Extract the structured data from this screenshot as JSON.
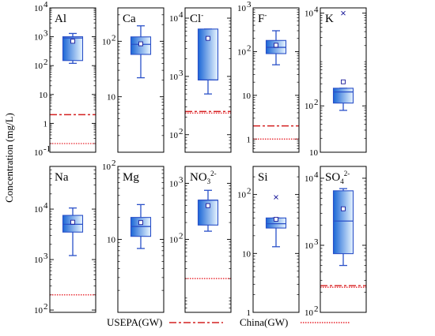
{
  "figure": {
    "ylabel": "Concentration (mg/L)",
    "legend": [
      {
        "label": "USEPA(GW)",
        "style": "dash",
        "color": "#d42020"
      },
      {
        "label": "China(GW)",
        "style": "dot",
        "color": "#e8242c"
      }
    ],
    "colors": {
      "box_dark": "#1b66d6",
      "box_light": "#e9f6ff",
      "box_stroke": "#2a50c8",
      "limit": "#d42020"
    }
  },
  "chart_data": [
    {
      "type": "box",
      "title": "Al",
      "title_sup": "",
      "title_sub": "",
      "scale": "log",
      "ylim": [
        0.1,
        10000
      ],
      "ticks": [
        {
          "v": 0.1,
          "t": "10",
          "e": "-1"
        },
        {
          "v": 1,
          "t": "1",
          "e": ""
        },
        {
          "v": 10,
          "t": "10",
          "e": ""
        },
        {
          "v": 100,
          "t": "10",
          "e": "2"
        },
        {
          "v": 1000,
          "t": "10",
          "e": "3"
        },
        {
          "v": 10000,
          "t": "10",
          "e": "4"
        }
      ],
      "stats": {
        "min": 120,
        "q1": 150,
        "median": 900,
        "q3": 1000,
        "max": 1300,
        "mean": 700,
        "outliers": []
      },
      "usepa": 2,
      "china": 0.2
    },
    {
      "type": "box",
      "title": "Ca",
      "title_sup": "",
      "title_sub": "",
      "scale": "log",
      "ylim": [
        1,
        400
      ],
      "ticks": [
        {
          "v": 10,
          "t": "10",
          "e": ""
        },
        {
          "v": 100,
          "t": "10",
          "e": "2"
        }
      ],
      "stats": {
        "min": 22,
        "q1": 58,
        "median": 88,
        "q3": 120,
        "max": 190,
        "mean": 90,
        "outliers": []
      },
      "usepa": null,
      "china": null
    },
    {
      "type": "box",
      "title": "Cl",
      "title_sup": "-",
      "title_sub": "",
      "scale": "log",
      "ylim": [
        50,
        15000
      ],
      "ticks": [
        {
          "v": 100,
          "t": "10",
          "e": "2"
        },
        {
          "v": 1000,
          "t": "10",
          "e": "3"
        },
        {
          "v": 10000,
          "t": "10",
          "e": "4"
        }
      ],
      "stats": {
        "min": 500,
        "q1": 870,
        "median": 870,
        "q3": 6500,
        "max": 6500,
        "mean": 4500,
        "outliers": []
      },
      "usepa": 250,
      "china": 250
    },
    {
      "type": "box",
      "title": "F",
      "title_sup": "-",
      "title_sub": "",
      "scale": "log",
      "ylim": [
        0.5,
        1000
      ],
      "ticks": [
        {
          "v": 1,
          "t": "1",
          "e": ""
        },
        {
          "v": 10,
          "t": "10",
          "e": ""
        },
        {
          "v": 100,
          "t": "10",
          "e": "2"
        },
        {
          "v": 1000,
          "t": "10",
          "e": "3"
        }
      ],
      "stats": {
        "min": 50,
        "q1": 90,
        "median": 125,
        "q3": 180,
        "max": 300,
        "mean": 140,
        "outliers": []
      },
      "usepa": 2,
      "china": 1
    },
    {
      "type": "box",
      "title": "K",
      "title_sup": "",
      "title_sub": "",
      "scale": "log",
      "ylim": [
        10,
        13000
      ],
      "ticks": [
        {
          "v": 10,
          "t": "10",
          "e": ""
        },
        {
          "v": 100,
          "t": "10",
          "e": "2"
        },
        {
          "v": 10000,
          "t": "10",
          "e": "4"
        }
      ],
      "stats": {
        "min": 80,
        "q1": 115,
        "median": 200,
        "q3": 240,
        "max": 240,
        "mean": 330,
        "outliers": [
          10000
        ]
      },
      "usepa": null,
      "china": null
    },
    {
      "type": "box",
      "title": "Na",
      "title_sup": "",
      "title_sub": "",
      "scale": "log",
      "ylim": [
        90,
        70000
      ],
      "ticks": [
        {
          "v": 100,
          "t": "10",
          "e": "2"
        },
        {
          "v": 1000,
          "t": "10",
          "e": "3"
        },
        {
          "v": 10000,
          "t": "10",
          "e": "4"
        }
      ],
      "stats": {
        "min": 1200,
        "q1": 3500,
        "median": 5000,
        "q3": 7500,
        "max": 10500,
        "mean": 5500,
        "outliers": []
      },
      "usepa": null,
      "china": 200
    },
    {
      "type": "box",
      "title": "Mg",
      "title_sup": "",
      "title_sub": "",
      "scale": "log",
      "ylim": [
        1,
        100
      ],
      "ticks": [
        {
          "v": 10,
          "t": "10",
          "e": ""
        },
        {
          "v": 100,
          "t": "10",
          "e": "2"
        }
      ],
      "stats": {
        "min": 7.5,
        "q1": 11,
        "median": 15,
        "q3": 20,
        "max": 30,
        "mean": 17,
        "outliers": []
      },
      "usepa": null,
      "china": null
    },
    {
      "type": "box",
      "title": "NO",
      "title_sup": "2-",
      "title_sub": "3",
      "scale": "log",
      "ylim": [
        5,
        2000
      ],
      "ticks": [
        {
          "v": 100,
          "t": "10",
          "e": "2"
        },
        {
          "v": 1000,
          "t": "10",
          "e": "3"
        }
      ],
      "stats": {
        "min": 140,
        "q1": 180,
        "median": 500,
        "q3": 500,
        "max": 750,
        "mean": 400,
        "outliers": []
      },
      "usepa": null,
      "china": 20
    },
    {
      "type": "box",
      "title": "Si",
      "title_sup": "",
      "title_sub": "",
      "scale": "log",
      "ylim": [
        1,
        300
      ],
      "ticks": [
        {
          "v": 1,
          "t": "1",
          "e": ""
        },
        {
          "v": 10,
          "t": "10",
          "e": ""
        },
        {
          "v": 100,
          "t": "10",
          "e": "2"
        }
      ],
      "stats": {
        "min": 13,
        "q1": 27,
        "median": 32,
        "q3": 40,
        "max": 40,
        "mean": 38,
        "outliers": [
          90
        ]
      },
      "usepa": null,
      "china": null
    },
    {
      "type": "box",
      "title": "SO",
      "title_sup": "2-",
      "title_sub": "4",
      "scale": "log",
      "ylim": [
        100,
        15000
      ],
      "ticks": [
        {
          "v": 100,
          "t": "10",
          "e": "2"
        },
        {
          "v": 1000,
          "t": "10",
          "e": "3"
        },
        {
          "v": 10000,
          "t": "10",
          "e": "4"
        }
      ],
      "stats": {
        "min": 500,
        "q1": 750,
        "median": 2300,
        "q3": 6500,
        "max": 7000,
        "mean": 3500,
        "outliers": []
      },
      "usepa": 250,
      "china": 250
    }
  ]
}
